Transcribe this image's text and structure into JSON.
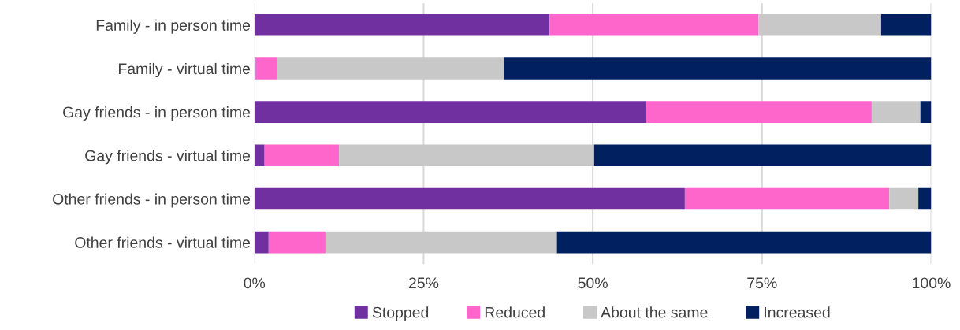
{
  "chart_data": {
    "type": "bar",
    "orientation": "horizontal",
    "stacked": true,
    "categories": [
      "Family - in person time",
      "Family - virtual time",
      "Gay friends - in person time",
      "Gay friends - virtual time",
      "Other friends - in person time",
      "Other friends - virtual time"
    ],
    "series": [
      {
        "name": "Stopped",
        "color": "#7030a0",
        "values": [
          43.6,
          0.2,
          57.8,
          1.5,
          63.6,
          2.1
        ]
      },
      {
        "name": "Reduced",
        "color": "#ff66cc",
        "values": [
          30.9,
          3.2,
          33.4,
          11.0,
          30.2,
          8.4
        ]
      },
      {
        "name": "About the same",
        "color": "#c8c8c8",
        "values": [
          18.1,
          33.5,
          7.2,
          37.7,
          4.3,
          34.2
        ]
      },
      {
        "name": "Increased",
        "color": "#002060",
        "values": [
          7.4,
          63.1,
          1.6,
          49.8,
          1.9,
          55.3
        ]
      }
    ],
    "xlim": [
      0,
      100
    ],
    "xticks": [
      {
        "value": 0,
        "label": "0%"
      },
      {
        "value": 25,
        "label": "25%"
      },
      {
        "value": 50,
        "label": "50%"
      },
      {
        "value": 75,
        "label": "75%"
      },
      {
        "value": 100,
        "label": "100%"
      }
    ],
    "grid": "x",
    "legend": "bottom"
  }
}
